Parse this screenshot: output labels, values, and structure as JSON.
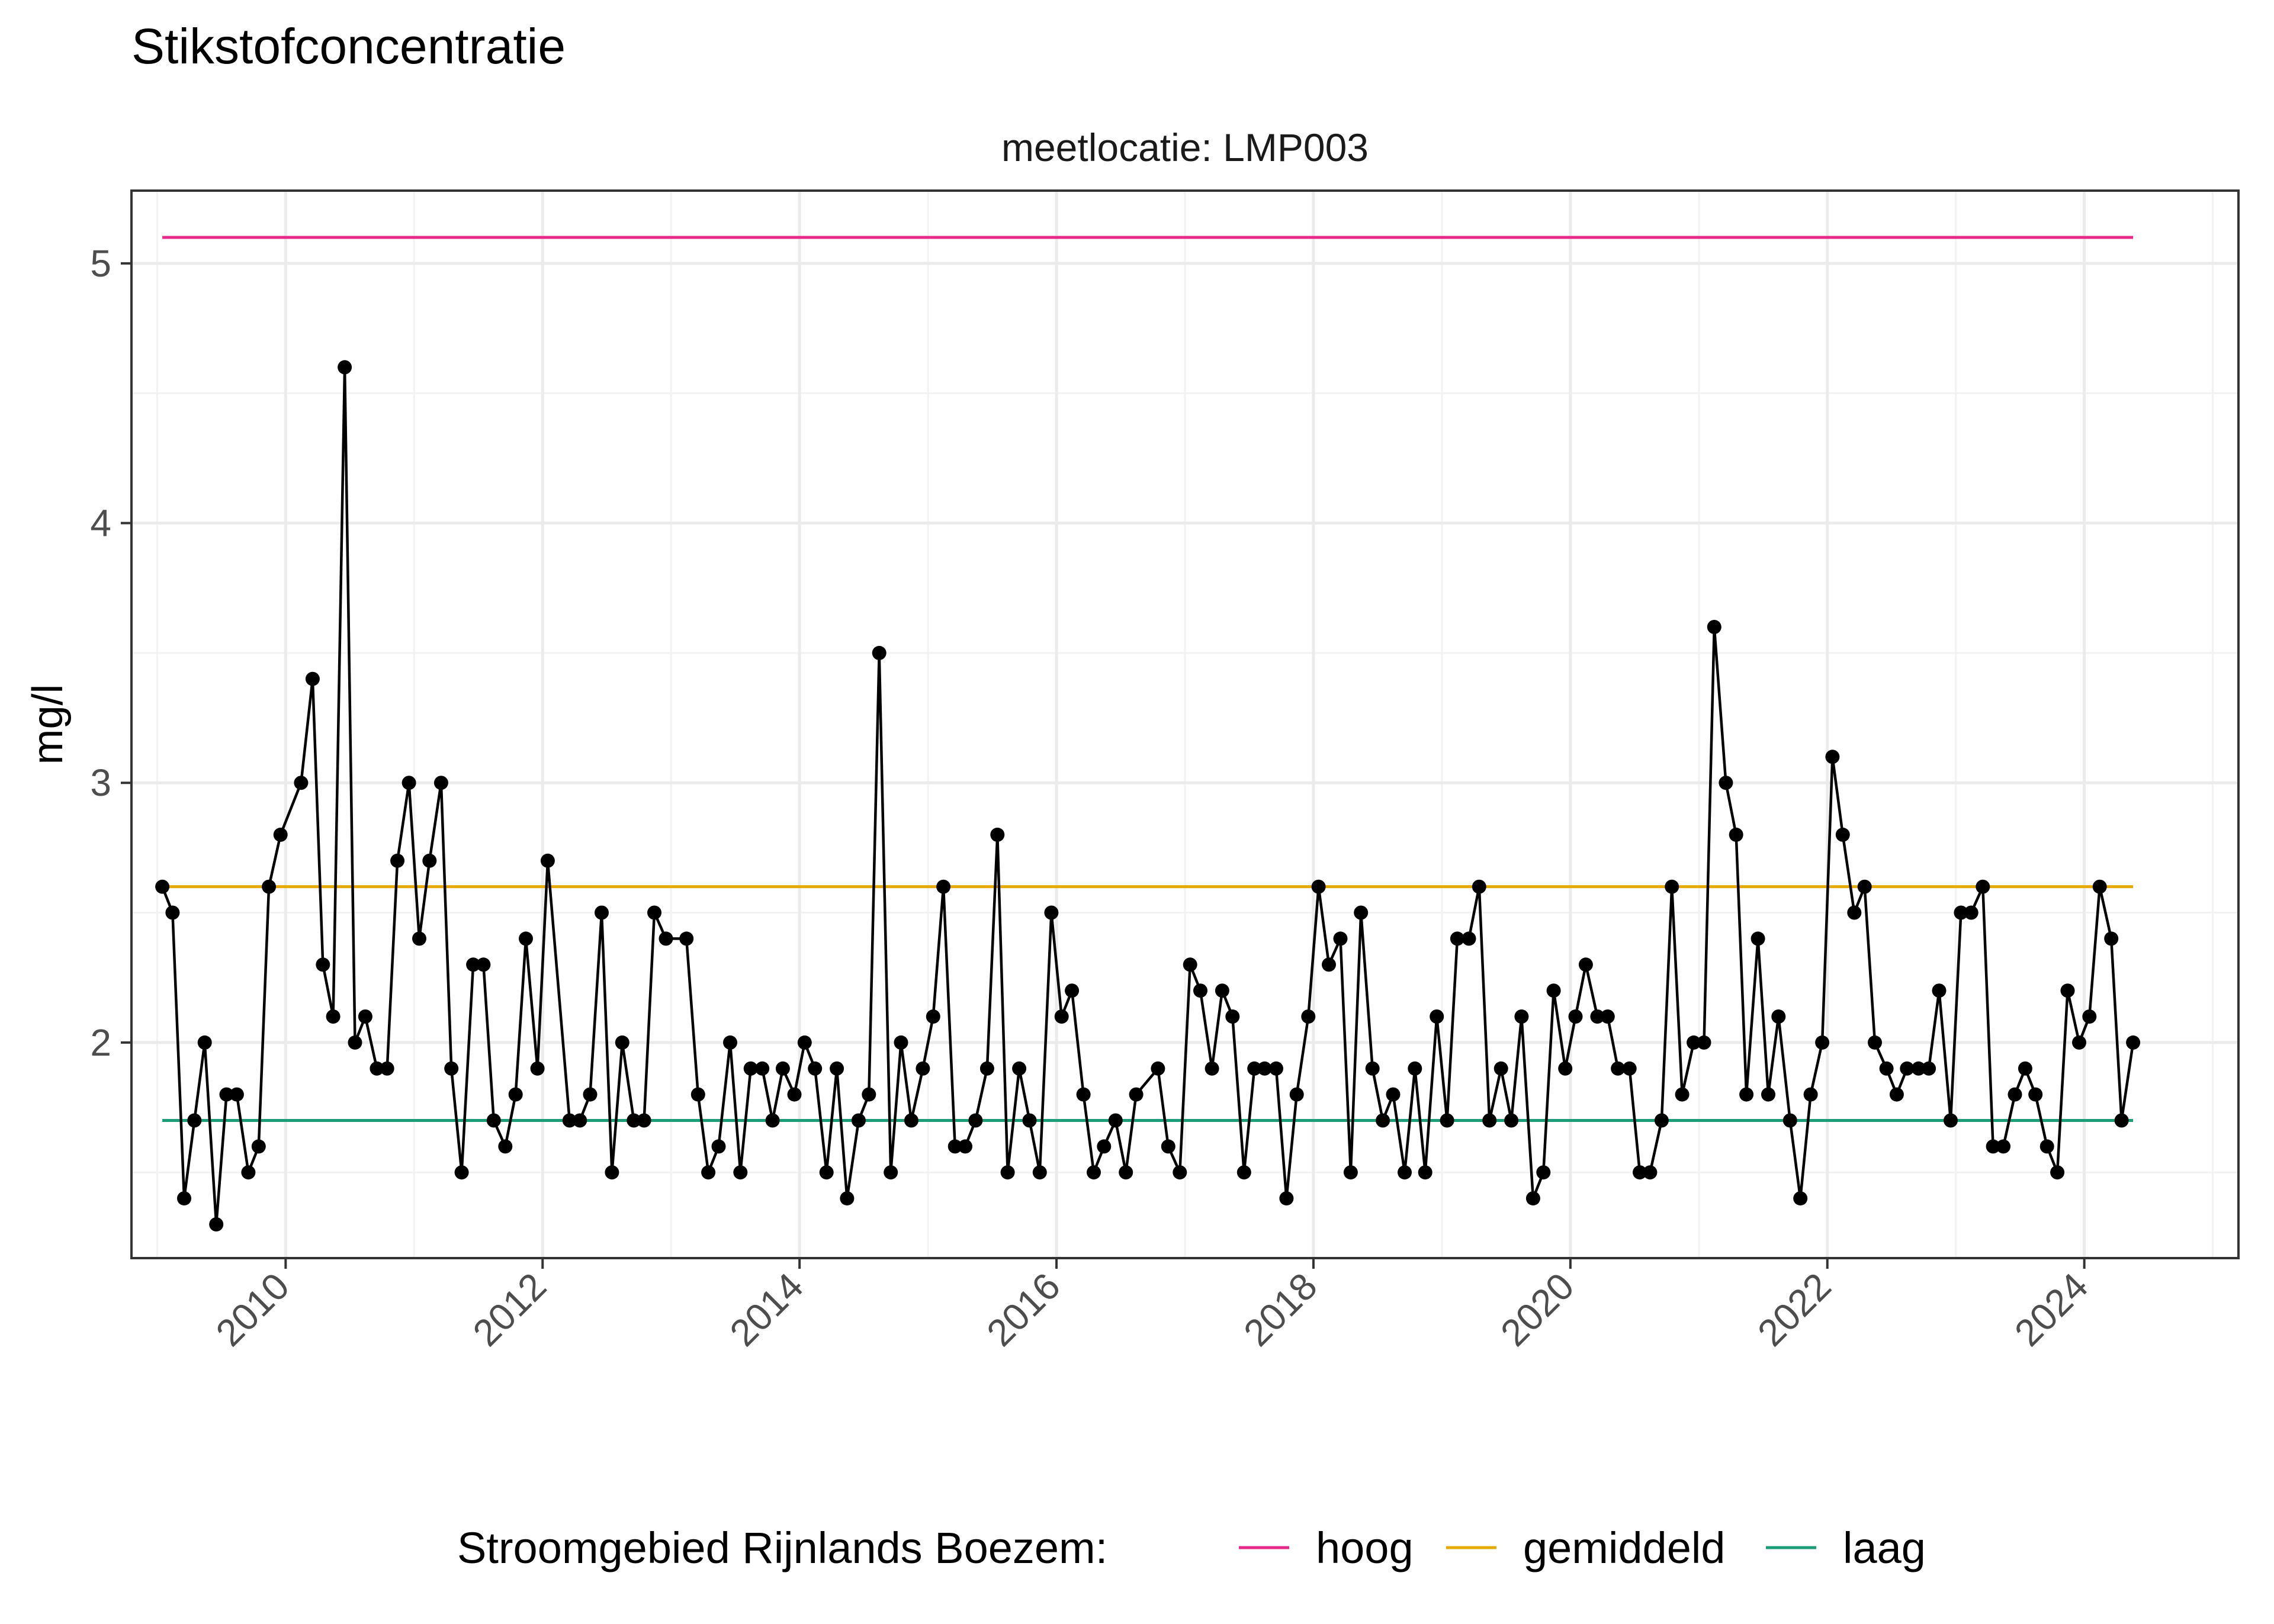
{
  "page_title": "Stikstofconcentratie",
  "chart_data": {
    "type": "line",
    "facet_label": "meetlocatie: LMP003",
    "xlabel": "",
    "ylabel": "mg/l",
    "xlim": [
      2008.8,
      2025.2
    ],
    "ylim": [
      1.17,
      5.28
    ],
    "x_ticks": [
      2010,
      2012,
      2014,
      2016,
      2018,
      2020,
      2022,
      2024
    ],
    "x_tick_labels": [
      "2010",
      "2012",
      "2014",
      "2016",
      "2018",
      "2020",
      "2022",
      "2024"
    ],
    "y_ticks": [
      2,
      3,
      4,
      5
    ],
    "y_tick_labels": [
      "2",
      "3",
      "4",
      "5"
    ],
    "grid": true,
    "legend": {
      "title": "Stroomgebied Rijnlands Boezem:",
      "position": "bottom",
      "items": [
        {
          "label": "hoog",
          "color": "#e7298a"
        },
        {
          "label": "gemiddeld",
          "color": "#e6ab02"
        },
        {
          "label": "laag",
          "color": "#1b9e77"
        }
      ]
    },
    "reference_lines": [
      {
        "name": "hoog",
        "value": 5.1,
        "color": "#e7298a"
      },
      {
        "name": "gemiddeld",
        "value": 2.6,
        "color": "#e6ab02"
      },
      {
        "name": "laag",
        "value": 1.7,
        "color": "#1b9e77"
      }
    ],
    "reference_x_range": [
      2009.04,
      2024.38
    ],
    "series": [
      {
        "color": "#000000",
        "points": [
          [
            2009.04,
            2.6
          ],
          [
            2009.12,
            2.5
          ],
          [
            2009.21,
            1.4
          ],
          [
            2009.29,
            1.7
          ],
          [
            2009.37,
            2.0
          ],
          [
            2009.46,
            1.3
          ],
          [
            2009.54,
            1.8
          ],
          [
            2009.62,
            1.8
          ],
          [
            2009.71,
            1.5
          ],
          [
            2009.79,
            1.6
          ],
          [
            2009.87,
            2.6
          ],
          [
            2009.96,
            2.8
          ],
          [
            2010.12,
            3.0
          ],
          [
            2010.21,
            3.4
          ],
          [
            2010.29,
            2.3
          ],
          [
            2010.37,
            2.1
          ],
          [
            2010.46,
            4.6
          ],
          [
            2010.54,
            2.0
          ],
          [
            2010.62,
            2.1
          ],
          [
            2010.71,
            1.9
          ],
          [
            2010.79,
            1.9
          ],
          [
            2010.87,
            2.7
          ],
          [
            2010.96,
            3.0
          ],
          [
            2011.04,
            2.4
          ],
          [
            2011.12,
            2.7
          ],
          [
            2011.21,
            3.0
          ],
          [
            2011.29,
            1.9
          ],
          [
            2011.37,
            1.5
          ],
          [
            2011.46,
            2.3
          ],
          [
            2011.54,
            2.3
          ],
          [
            2011.62,
            1.7
          ],
          [
            2011.71,
            1.6
          ],
          [
            2011.79,
            1.8
          ],
          [
            2011.87,
            2.4
          ],
          [
            2011.96,
            1.9
          ],
          [
            2012.04,
            2.7
          ],
          [
            2012.21,
            1.7
          ],
          [
            2012.29,
            1.7
          ],
          [
            2012.37,
            1.8
          ],
          [
            2012.46,
            2.5
          ],
          [
            2012.54,
            1.5
          ],
          [
            2012.62,
            2.0
          ],
          [
            2012.71,
            1.7
          ],
          [
            2012.79,
            1.7
          ],
          [
            2012.87,
            2.5
          ],
          [
            2012.96,
            2.4
          ],
          [
            2013.12,
            2.4
          ],
          [
            2013.21,
            1.8
          ],
          [
            2013.29,
            1.5
          ],
          [
            2013.37,
            1.6
          ],
          [
            2013.46,
            2.0
          ],
          [
            2013.54,
            1.5
          ],
          [
            2013.62,
            1.9
          ],
          [
            2013.71,
            1.9
          ],
          [
            2013.79,
            1.7
          ],
          [
            2013.87,
            1.9
          ],
          [
            2013.96,
            1.8
          ],
          [
            2014.04,
            2.0
          ],
          [
            2014.12,
            1.9
          ],
          [
            2014.21,
            1.5
          ],
          [
            2014.29,
            1.9
          ],
          [
            2014.37,
            1.4
          ],
          [
            2014.46,
            1.7
          ],
          [
            2014.54,
            1.8
          ],
          [
            2014.62,
            3.5
          ],
          [
            2014.71,
            1.5
          ],
          [
            2014.79,
            2.0
          ],
          [
            2014.87,
            1.7
          ],
          [
            2014.96,
            1.9
          ],
          [
            2015.04,
            2.1
          ],
          [
            2015.12,
            2.6
          ],
          [
            2015.21,
            1.6
          ],
          [
            2015.29,
            1.6
          ],
          [
            2015.37,
            1.7
          ],
          [
            2015.46,
            1.9
          ],
          [
            2015.54,
            2.8
          ],
          [
            2015.62,
            1.5
          ],
          [
            2015.71,
            1.9
          ],
          [
            2015.79,
            1.7
          ],
          [
            2015.87,
            1.5
          ],
          [
            2015.96,
            2.5
          ],
          [
            2016.04,
            2.1
          ],
          [
            2016.12,
            2.2
          ],
          [
            2016.21,
            1.8
          ],
          [
            2016.29,
            1.5
          ],
          [
            2016.37,
            1.6
          ],
          [
            2016.46,
            1.7
          ],
          [
            2016.54,
            1.5
          ],
          [
            2016.62,
            1.8
          ],
          [
            2016.79,
            1.9
          ],
          [
            2016.87,
            1.6
          ],
          [
            2016.96,
            1.5
          ],
          [
            2017.04,
            2.3
          ],
          [
            2017.12,
            2.2
          ],
          [
            2017.21,
            1.9
          ],
          [
            2017.29,
            2.2
          ],
          [
            2017.37,
            2.1
          ],
          [
            2017.46,
            1.5
          ],
          [
            2017.54,
            1.9
          ],
          [
            2017.62,
            1.9
          ],
          [
            2017.71,
            1.9
          ],
          [
            2017.79,
            1.4
          ],
          [
            2017.87,
            1.8
          ],
          [
            2017.96,
            2.1
          ],
          [
            2018.04,
            2.6
          ],
          [
            2018.12,
            2.3
          ],
          [
            2018.21,
            2.4
          ],
          [
            2018.29,
            1.5
          ],
          [
            2018.37,
            2.5
          ],
          [
            2018.46,
            1.9
          ],
          [
            2018.54,
            1.7
          ],
          [
            2018.62,
            1.8
          ],
          [
            2018.71,
            1.5
          ],
          [
            2018.79,
            1.9
          ],
          [
            2018.87,
            1.5
          ],
          [
            2018.96,
            2.1
          ],
          [
            2019.04,
            1.7
          ],
          [
            2019.12,
            2.4
          ],
          [
            2019.21,
            2.4
          ],
          [
            2019.29,
            2.6
          ],
          [
            2019.37,
            1.7
          ],
          [
            2019.46,
            1.9
          ],
          [
            2019.54,
            1.7
          ],
          [
            2019.62,
            2.1
          ],
          [
            2019.71,
            1.4
          ],
          [
            2019.79,
            1.5
          ],
          [
            2019.87,
            2.2
          ],
          [
            2019.96,
            1.9
          ],
          [
            2020.04,
            2.1
          ],
          [
            2020.12,
            2.3
          ],
          [
            2020.21,
            2.1
          ],
          [
            2020.29,
            2.1
          ],
          [
            2020.37,
            1.9
          ],
          [
            2020.46,
            1.9
          ],
          [
            2020.54,
            1.5
          ],
          [
            2020.62,
            1.5
          ],
          [
            2020.71,
            1.7
          ],
          [
            2020.79,
            2.6
          ],
          [
            2020.87,
            1.8
          ],
          [
            2020.96,
            2.0
          ],
          [
            2021.04,
            2.0
          ],
          [
            2021.12,
            3.6
          ],
          [
            2021.21,
            3.0
          ],
          [
            2021.29,
            2.8
          ],
          [
            2021.37,
            1.8
          ],
          [
            2021.46,
            2.4
          ],
          [
            2021.54,
            1.8
          ],
          [
            2021.62,
            2.1
          ],
          [
            2021.71,
            1.7
          ],
          [
            2021.79,
            1.4
          ],
          [
            2021.87,
            1.8
          ],
          [
            2021.96,
            2.0
          ],
          [
            2022.04,
            3.1
          ],
          [
            2022.12,
            2.8
          ],
          [
            2022.21,
            2.5
          ],
          [
            2022.29,
            2.6
          ],
          [
            2022.37,
            2.0
          ],
          [
            2022.46,
            1.9
          ],
          [
            2022.54,
            1.8
          ],
          [
            2022.62,
            1.9
          ],
          [
            2022.71,
            1.9
          ],
          [
            2022.79,
            1.9
          ],
          [
            2022.87,
            2.2
          ],
          [
            2022.96,
            1.7
          ],
          [
            2023.04,
            2.5
          ],
          [
            2023.12,
            2.5
          ],
          [
            2023.21,
            2.6
          ],
          [
            2023.29,
            1.6
          ],
          [
            2023.37,
            1.6
          ],
          [
            2023.46,
            1.8
          ],
          [
            2023.54,
            1.9
          ],
          [
            2023.62,
            1.8
          ],
          [
            2023.71,
            1.6
          ],
          [
            2023.79,
            1.5
          ],
          [
            2023.87,
            2.2
          ],
          [
            2023.96,
            2.0
          ],
          [
            2024.04,
            2.1
          ],
          [
            2024.12,
            2.6
          ],
          [
            2024.21,
            2.4
          ],
          [
            2024.29,
            1.7
          ],
          [
            2024.38,
            2.0
          ]
        ]
      }
    ]
  }
}
